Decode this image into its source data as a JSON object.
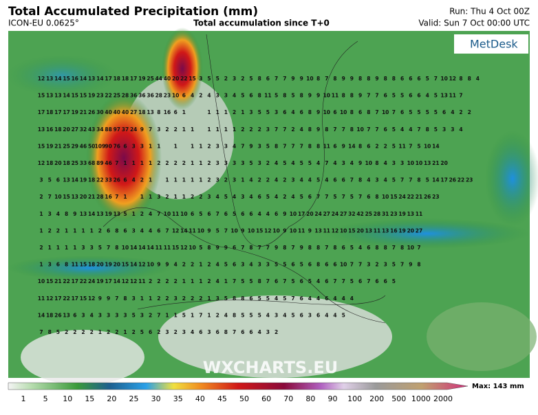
{
  "header": {
    "title": "Total Accumulated Precipitation (mm)",
    "model": "ICON-EU 0.0625°",
    "subtitle": "Total accumulation since T+0",
    "run": "Run: Thu 4 Oct 00Z",
    "valid": "Valid: Sun 7 Oct 00:00 UTC"
  },
  "logo": "MetDesk",
  "watermark": "WXCHARTS.EU",
  "legend": {
    "ticks": [
      1,
      5,
      10,
      15,
      20,
      25,
      30,
      35,
      40,
      45,
      50,
      60,
      70,
      80,
      90,
      100,
      200,
      500,
      1000,
      2000
    ],
    "max": "Max: 143 mm"
  },
  "map": {
    "rows": [
      [
        12,
        13,
        14,
        15,
        16,
        14,
        13,
        14,
        17,
        18,
        18,
        17,
        19,
        25,
        44,
        40,
        20,
        22,
        15,
        3,
        5,
        5,
        2,
        3,
        2,
        5,
        8,
        6,
        7,
        7,
        9,
        9,
        10,
        8,
        7,
        8,
        9,
        9,
        8,
        8,
        9,
        8,
        8,
        6,
        6,
        6,
        5,
        7,
        10,
        12,
        8,
        8,
        4
      ],
      [
        15,
        13,
        13,
        14,
        15,
        15,
        19,
        23,
        22,
        25,
        28,
        36,
        36,
        36,
        28,
        23,
        10,
        6,
        4,
        2,
        4,
        3,
        3,
        4,
        5,
        6,
        8,
        11,
        5,
        8,
        5,
        8,
        9,
        9,
        10,
        11,
        8,
        8,
        9,
        7,
        7,
        6,
        5,
        5,
        6,
        6,
        4,
        5,
        13,
        11,
        7
      ],
      [
        17,
        18,
        17,
        17,
        19,
        21,
        26,
        30,
        40,
        40,
        40,
        27,
        18,
        13,
        8,
        16,
        6,
        1,
        null,
        null,
        1,
        1,
        1,
        2,
        1,
        3,
        5,
        5,
        3,
        6,
        4,
        6,
        8,
        9,
        10,
        6,
        10,
        8,
        6,
        8,
        7,
        10,
        7,
        6,
        5,
        5,
        5,
        5,
        6,
        4,
        2,
        2
      ],
      [
        13,
        16,
        18,
        20,
        27,
        32,
        43,
        34,
        88,
        97,
        37,
        24,
        9,
        7,
        3,
        2,
        2,
        1,
        1,
        null,
        1,
        1,
        1,
        1,
        2,
        2,
        2,
        3,
        7,
        7,
        2,
        4,
        8,
        9,
        8,
        7,
        7,
        8,
        10,
        7,
        7,
        6,
        5,
        4,
        4,
        7,
        8,
        5,
        3,
        3,
        4
      ],
      [
        15,
        19,
        21,
        25,
        29,
        46,
        50,
        109,
        90,
        76,
        6,
        3,
        3,
        1,
        1,
        null,
        1,
        null,
        1,
        1,
        2,
        3,
        3,
        4,
        7,
        9,
        3,
        5,
        8,
        7,
        7,
        7,
        8,
        8,
        11,
        6,
        9,
        14,
        8,
        6,
        2,
        2,
        5,
        11,
        7,
        5,
        10,
        14
      ],
      [
        12,
        18,
        20,
        18,
        25,
        33,
        68,
        89,
        46,
        7,
        1,
        1,
        1,
        1,
        2,
        2,
        2,
        2,
        1,
        1,
        2,
        3,
        3,
        3,
        3,
        5,
        3,
        2,
        4,
        5,
        4,
        5,
        5,
        4,
        7,
        4,
        3,
        4,
        9,
        10,
        8,
        4,
        3,
        3,
        10,
        10,
        13,
        21,
        20
      ],
      [
        3,
        5,
        6,
        13,
        14,
        19,
        18,
        22,
        33,
        26,
        6,
        4,
        2,
        1,
        null,
        1,
        1,
        1,
        1,
        1,
        2,
        3,
        2,
        3,
        1,
        4,
        2,
        2,
        4,
        2,
        3,
        4,
        4,
        5,
        4,
        6,
        6,
        7,
        8,
        4,
        3,
        4,
        5,
        7,
        7,
        8,
        5,
        14,
        17,
        26,
        22,
        23
      ],
      [
        2,
        7,
        10,
        15,
        13,
        20,
        21,
        28,
        16,
        7,
        1,
        null,
        1,
        1,
        3,
        2,
        1,
        1,
        2,
        2,
        3,
        4,
        5,
        4,
        3,
        4,
        6,
        5,
        4,
        2,
        4,
        5,
        6,
        7,
        7,
        5,
        7,
        5,
        7,
        6,
        8,
        10,
        15,
        24,
        22,
        21,
        26,
        23
      ],
      [
        1,
        3,
        4,
        8,
        9,
        13,
        14,
        13,
        19,
        13,
        5,
        1,
        2,
        4,
        7,
        10,
        11,
        10,
        6,
        5,
        6,
        7,
        6,
        5,
        6,
        6,
        4,
        4,
        6,
        9,
        10,
        17,
        20,
        24,
        27,
        24,
        27,
        32,
        42,
        25,
        28,
        31,
        23,
        19,
        13,
        11
      ],
      [
        1,
        2,
        2,
        1,
        1,
        1,
        1,
        2,
        6,
        8,
        6,
        3,
        4,
        4,
        6,
        7,
        12,
        14,
        11,
        10,
        9,
        5,
        7,
        10,
        9,
        10,
        15,
        12,
        10,
        9,
        10,
        11,
        9,
        13,
        11,
        12,
        10,
        15,
        20,
        13,
        11,
        13,
        16,
        19,
        20,
        27
      ],
      [
        2,
        1,
        1,
        1,
        1,
        3,
        3,
        5,
        7,
        8,
        10,
        14,
        14,
        14,
        11,
        11,
        15,
        12,
        10,
        5,
        8,
        9,
        9,
        6,
        7,
        8,
        7,
        7,
        9,
        8,
        7,
        9,
        8,
        8,
        7,
        8,
        6,
        5,
        4,
        6,
        8,
        8,
        7,
        8,
        10,
        7
      ],
      [
        1,
        3,
        6,
        8,
        11,
        15,
        18,
        20,
        19,
        20,
        15,
        14,
        12,
        10,
        9,
        9,
        4,
        2,
        2,
        1,
        2,
        4,
        5,
        6,
        3,
        4,
        3,
        3,
        5,
        5,
        6,
        5,
        6,
        8,
        6,
        6,
        10,
        7,
        7,
        3,
        2,
        3,
        5,
        7,
        9,
        8
      ],
      [
        10,
        15,
        21,
        22,
        17,
        22,
        24,
        19,
        17,
        14,
        12,
        12,
        11,
        2,
        2,
        2,
        2,
        1,
        1,
        1,
        2,
        4,
        1,
        7,
        5,
        5,
        8,
        7,
        6,
        7,
        5,
        6,
        5,
        4,
        6,
        7,
        7,
        5,
        6,
        7,
        6,
        6,
        5
      ],
      [
        11,
        12,
        17,
        22,
        17,
        15,
        12,
        9,
        9,
        7,
        8,
        3,
        1,
        1,
        2,
        2,
        3,
        2,
        2,
        2,
        1,
        3,
        5,
        8,
        8,
        6,
        5,
        5,
        4,
        5,
        7,
        6,
        4,
        4,
        6,
        4,
        4,
        4
      ],
      [
        14,
        18,
        26,
        13,
        6,
        3,
        4,
        3,
        3,
        3,
        3,
        5,
        3,
        2,
        7,
        1,
        1,
        5,
        1,
        7,
        1,
        2,
        4,
        8,
        5,
        5,
        5,
        4,
        3,
        4,
        5,
        6,
        3,
        6,
        4,
        4,
        5
      ],
      [
        7,
        8,
        5,
        2,
        2,
        2,
        2,
        1,
        2,
        2,
        1,
        2,
        5,
        6,
        2,
        3,
        2,
        3,
        4,
        6,
        3,
        6,
        8,
        7,
        6,
        6,
        4,
        3,
        2
      ]
    ]
  }
}
